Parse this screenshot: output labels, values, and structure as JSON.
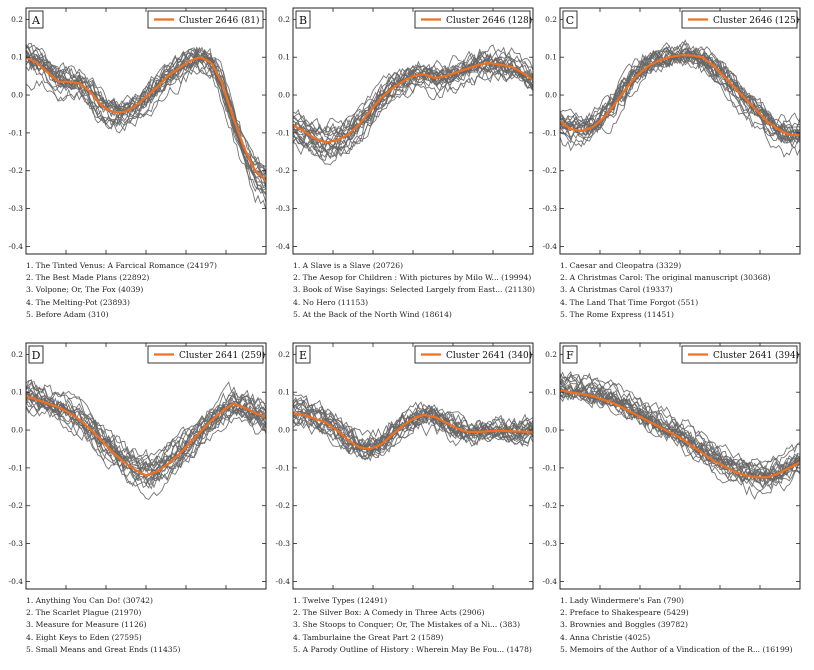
{
  "figure": {
    "colors": {
      "orange": "#f07020",
      "gray": "#666666",
      "frame": "#222222"
    },
    "y_axis": {
      "range": [
        -0.42,
        0.23
      ],
      "ticks": [
        0.2,
        0.1,
        0.0,
        -0.1,
        -0.2,
        -0.3,
        -0.4
      ],
      "tick_labels": [
        "0.2",
        "0.1",
        "0.0",
        "-0.1",
        "-0.2",
        "-0.3",
        "-0.4"
      ]
    },
    "x_axis": {
      "ticks": [
        "",
        "",
        "",
        "",
        ""
      ]
    },
    "line_count_per_panel": 20
  },
  "chart_data": [
    {
      "type": "line",
      "panel": "A",
      "legend": "Cluster 2646 (81)",
      "legend_location": "top-right",
      "centroid": [
        0.1,
        0.085,
        0.06,
        0.035,
        0.035,
        0.03,
        0.005,
        -0.03,
        -0.045,
        -0.045,
        -0.03,
        -0.005,
        0.02,
        0.05,
        0.07,
        0.09,
        0.1,
        0.085,
        0.03,
        -0.06,
        -0.14,
        -0.2,
        -0.225
      ],
      "books": [
        "1. The Tinted Venus: A Farcical Romance (24197)",
        "2. The Best Made Plans (22892)",
        "3. Volpone; Or, The Fox (4039)",
        "4. The Melting-Pot (23893)",
        "5. Before Adam (310)"
      ]
    },
    {
      "type": "line",
      "panel": "B",
      "legend": "Cluster 2646 (128)",
      "legend_location": "top-right",
      "centroid": [
        -0.08,
        -0.095,
        -0.115,
        -0.125,
        -0.12,
        -0.105,
        -0.08,
        -0.045,
        -0.01,
        0.015,
        0.035,
        0.05,
        0.055,
        0.045,
        0.05,
        0.06,
        0.07,
        0.08,
        0.085,
        0.08,
        0.075,
        0.06,
        0.04
      ],
      "books": [
        "1. A Slave is a Slave (20726)",
        "2. The Aesop for Children : With pictures by Milo W... (19994)",
        "3. Book of Wise Sayings: Selected Largely from East... (21130)",
        "4. No Hero (11153)",
        "5. At the Back of the North Wind (18614)"
      ]
    },
    {
      "type": "line",
      "panel": "C",
      "legend": "Cluster 2646 (125)",
      "legend_location": "top-right",
      "centroid": [
        -0.07,
        -0.09,
        -0.095,
        -0.085,
        -0.06,
        -0.025,
        0.015,
        0.05,
        0.075,
        0.09,
        0.1,
        0.105,
        0.105,
        0.1,
        0.08,
        0.05,
        0.02,
        -0.01,
        -0.04,
        -0.07,
        -0.09,
        -0.105,
        -0.105
      ],
      "books": [
        "1. Caesar and Cleopatra (3329)",
        "2. A Christmas Carol: The original manuscript (30368)",
        "3. A Christmas Carol (19337)",
        "4. The Land That Time Forgot (551)",
        "5. The Rome Express (11451)"
      ]
    },
    {
      "type": "line",
      "panel": "D",
      "legend": "Cluster 2641 (259)",
      "legend_location": "top-right",
      "centroid": [
        0.09,
        0.08,
        0.07,
        0.06,
        0.045,
        0.025,
        0.0,
        -0.03,
        -0.06,
        -0.085,
        -0.105,
        -0.12,
        -0.11,
        -0.09,
        -0.065,
        -0.035,
        -0.005,
        0.025,
        0.05,
        0.07,
        0.06,
        0.045,
        0.035
      ],
      "books": [
        "1. Anything You Can Do! (30742)",
        "2. The Scarlet Plague (21970)",
        "3. Measure for Measure (1126)",
        "4. Eight Keys to Eden (27595)",
        "5. Small Means and Great Ends (11435)"
      ]
    },
    {
      "type": "line",
      "panel": "E",
      "legend": "Cluster 2641 (340)",
      "legend_location": "top-right",
      "centroid": [
        0.045,
        0.04,
        0.03,
        0.02,
        0.0,
        -0.025,
        -0.045,
        -0.05,
        -0.04,
        -0.015,
        0.01,
        0.03,
        0.04,
        0.035,
        0.02,
        0.005,
        -0.005,
        -0.005,
        -0.003,
        -0.002,
        -0.003,
        -0.004,
        -0.005
      ],
      "books": [
        "1. Twelve Types (12491)",
        "2. The Silver Box: A Comedy in Three Acts (2906)",
        "3. She Stoops to Conquer; Or, The Mistakes of a Ni... (383)",
        "4. Tamburlaine the Great Part 2 (1589)",
        "5. A Parody Outline of History : Wherein May Be Fou... (1478)"
      ]
    },
    {
      "type": "line",
      "panel": "F",
      "legend": "Cluster 2641 (394)",
      "legend_location": "top-right",
      "centroid": [
        0.105,
        0.1,
        0.095,
        0.09,
        0.08,
        0.07,
        0.055,
        0.04,
        0.025,
        0.01,
        -0.005,
        -0.02,
        -0.04,
        -0.06,
        -0.08,
        -0.095,
        -0.11,
        -0.12,
        -0.125,
        -0.125,
        -0.115,
        -0.1,
        -0.085
      ],
      "books": [
        "1. Lady Windermere's Fan (790)",
        "2. Preface to Shakespeare (5429)",
        "3. Brownies and Boggles (39782)",
        "4. Anna Christie (4025)",
        "5. Memoirs of the Author of a Vindication of the R... (16199)"
      ]
    }
  ]
}
